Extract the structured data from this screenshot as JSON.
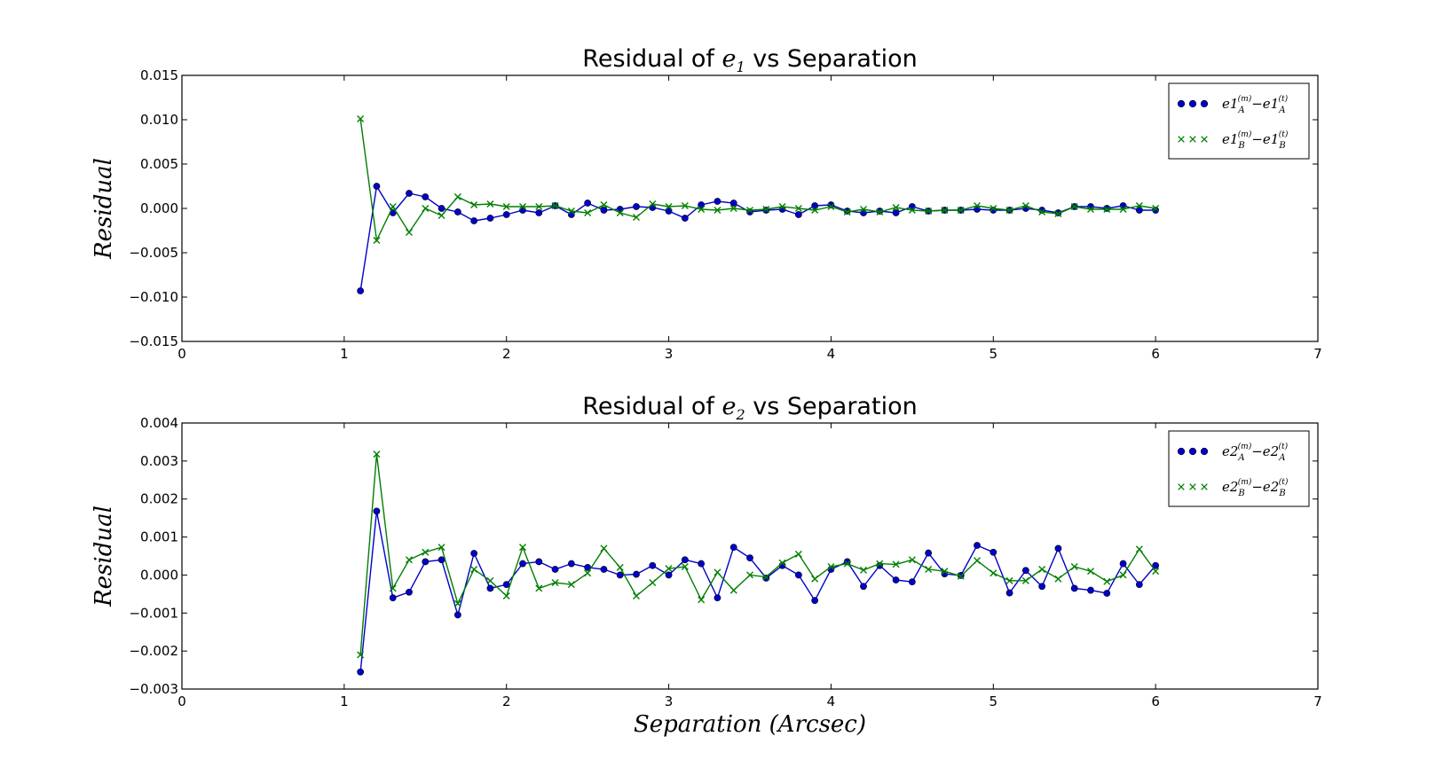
{
  "figure": {
    "xlabel": "Separation (Arcsec)",
    "colors": {
      "series_a": "#0000cc",
      "series_b": "#007f00",
      "axes": "#000000",
      "background": "#ffffff"
    }
  },
  "chart_data": [
    {
      "type": "line",
      "title": "Residual of e1 vs Separation",
      "title_prefix": "Residual of",
      "title_symbol": "e",
      "title_sub": "1",
      "title_suffix": "vs Separation",
      "xlabel": "",
      "ylabel": "Residual",
      "xlim": [
        0,
        7
      ],
      "ylim": [
        -0.015,
        0.015
      ],
      "xticks": [
        0,
        1,
        2,
        3,
        4,
        5,
        6,
        7
      ],
      "yticks": [
        -0.015,
        -0.01,
        -0.005,
        0.0,
        0.005,
        0.01,
        0.015
      ],
      "ytick_labels": [
        "−0.015",
        "−0.010",
        "−0.005",
        "0.000",
        "0.005",
        "0.010",
        "0.015"
      ],
      "grid": false,
      "legend": "top-right",
      "x": [
        1.1,
        1.2,
        1.3,
        1.4,
        1.5,
        1.6,
        1.7,
        1.8,
        1.9,
        2.0,
        2.1,
        2.2,
        2.3,
        2.4,
        2.5,
        2.6,
        2.7,
        2.8,
        2.9,
        3.0,
        3.1,
        3.2,
        3.3,
        3.4,
        3.5,
        3.6,
        3.7,
        3.8,
        3.9,
        4.0,
        4.1,
        4.2,
        4.3,
        4.4,
        4.5,
        4.6,
        4.7,
        4.8,
        4.9,
        5.0,
        5.1,
        5.2,
        5.3,
        5.4,
        5.5,
        5.6,
        5.7,
        5.8,
        5.9,
        6.0
      ],
      "series": [
        {
          "name": "e1_A^(m) − e1_A^(t)",
          "legend_label": {
            "base": "e1",
            "sub": "A",
            "sup_m": "(m)",
            "sup_t": "(t)"
          },
          "marker": "circle",
          "color": "#0000cc",
          "values": [
            -0.0093,
            0.0025,
            -0.0005,
            0.0017,
            0.0013,
            0.0,
            -0.0004,
            -0.0014,
            -0.0011,
            -0.0007,
            -0.0002,
            -0.0005,
            0.0003,
            -0.0007,
            0.0006,
            -0.0002,
            -0.0001,
            0.0002,
            0.0001,
            -0.0003,
            -0.0011,
            0.0004,
            0.0008,
            0.0006,
            -0.0004,
            -0.0002,
            -0.0001,
            -0.0007,
            0.0003,
            0.0004,
            -0.0003,
            -0.0005,
            -0.0003,
            -0.0005,
            0.0002,
            -0.0003,
            -0.0002,
            -0.0002,
            -0.0001,
            -0.0002,
            -0.0002,
            0.0,
            -0.0002,
            -0.0005,
            0.0002,
            0.0002,
            0.0,
            0.0003,
            -0.0002,
            -0.0002
          ]
        },
        {
          "name": "e1_B^(m) − e1_B^(t)",
          "legend_label": {
            "base": "e1",
            "sub": "B",
            "sup_m": "(m)",
            "sup_t": "(t)"
          },
          "marker": "x",
          "color": "#007f00",
          "values": [
            0.0101,
            -0.0036,
            0.0002,
            -0.0027,
            0.0,
            -0.0008,
            0.0013,
            0.0004,
            0.0005,
            0.0002,
            0.0002,
            0.0002,
            0.0003,
            -0.0003,
            -0.0005,
            0.0004,
            -0.0005,
            -0.001,
            0.0005,
            0.0002,
            0.0003,
            -0.0001,
            -0.0002,
            0.0,
            -0.0002,
            -0.0001,
            0.0002,
            0.0,
            -0.0002,
            0.0002,
            -0.0004,
            -0.0001,
            -0.0004,
            0.0001,
            -0.0002,
            -0.0003,
            -0.0002,
            -0.0002,
            0.0003,
            0.0,
            -0.0002,
            0.0003,
            -0.0004,
            -0.0006,
            0.0002,
            -0.0001,
            -0.0001,
            -0.0001,
            0.0003,
            0.0
          ]
        }
      ]
    },
    {
      "type": "line",
      "title": "Residual of e2 vs Separation",
      "title_prefix": "Residual of",
      "title_symbol": "e",
      "title_sub": "2",
      "title_suffix": "vs Separation",
      "xlabel": "Separation (Arcsec)",
      "ylabel": "Residual",
      "xlim": [
        0,
        7
      ],
      "ylim": [
        -0.003,
        0.004
      ],
      "xticks": [
        0,
        1,
        2,
        3,
        4,
        5,
        6,
        7
      ],
      "yticks": [
        -0.003,
        -0.002,
        -0.001,
        0.0,
        0.001,
        0.002,
        0.003,
        0.004
      ],
      "ytick_labels": [
        "−0.003",
        "−0.002",
        "−0.001",
        "0.000",
        "0.001",
        "0.002",
        "0.003",
        "0.004"
      ],
      "grid": false,
      "legend": "top-right",
      "x": [
        1.1,
        1.2,
        1.3,
        1.4,
        1.5,
        1.6,
        1.7,
        1.8,
        1.9,
        2.0,
        2.1,
        2.2,
        2.3,
        2.4,
        2.5,
        2.6,
        2.7,
        2.8,
        2.9,
        3.0,
        3.1,
        3.2,
        3.3,
        3.4,
        3.5,
        3.6,
        3.7,
        3.8,
        3.9,
        4.0,
        4.1,
        4.2,
        4.3,
        4.4,
        4.5,
        4.6,
        4.7,
        4.8,
        4.9,
        5.0,
        5.1,
        5.2,
        5.3,
        5.4,
        5.5,
        5.6,
        5.7,
        5.8,
        5.9,
        6.0
      ],
      "series": [
        {
          "name": "e2_A^(m) − e2_A^(t)",
          "legend_label": {
            "base": "e2",
            "sub": "A",
            "sup_m": "(m)",
            "sup_t": "(t)"
          },
          "marker": "circle",
          "color": "#0000cc",
          "values": [
            -0.00255,
            0.00168,
            -0.0006,
            -0.00045,
            0.00035,
            0.0004,
            -0.00105,
            0.00057,
            -0.00035,
            -0.00025,
            0.0003,
            0.00035,
            0.00015,
            0.0003,
            0.0002,
            0.00015,
            0.0,
            2e-05,
            0.00025,
            0.0,
            0.0004,
            0.0003,
            -0.0006,
            0.00073,
            0.00045,
            -8e-05,
            0.00025,
            0.0,
            -0.00067,
            0.00015,
            0.00035,
            -0.0003,
            0.00025,
            -0.00013,
            -0.00018,
            0.00058,
            3e-05,
            -1e-05,
            0.00078,
            0.0006,
            -0.00047,
            0.00012,
            -0.0003,
            0.0007,
            -0.00035,
            -0.0004,
            -0.00048,
            0.0003,
            -0.00025,
            0.00025
          ]
        },
        {
          "name": "e2_B^(m) − e2_B^(t)",
          "legend_label": {
            "base": "e2",
            "sub": "B",
            "sup_m": "(m)",
            "sup_t": "(t)"
          },
          "marker": "x",
          "color": "#007f00",
          "values": [
            -0.0021,
            0.00318,
            -0.00035,
            0.0004,
            0.0006,
            0.00073,
            -0.00075,
            0.00015,
            -0.00015,
            -0.00055,
            0.00073,
            -0.00035,
            -0.0002,
            -0.00025,
            5e-05,
            0.0007,
            0.0002,
            -0.00055,
            -0.0002,
            0.00017,
            0.00022,
            -0.00065,
            7e-05,
            -0.0004,
            0.0,
            -5e-05,
            0.00032,
            0.00055,
            -0.0001,
            0.00022,
            0.0003,
            0.00013,
            0.0003,
            0.00028,
            0.0004,
            0.00015,
            0.0001,
            -3e-05,
            0.00038,
            5e-05,
            -0.00015,
            -0.00015,
            0.00015,
            -0.0001,
            0.00022,
            0.0001,
            -0.00017,
            0.0,
            0.00068,
            0.0001
          ]
        }
      ]
    }
  ]
}
